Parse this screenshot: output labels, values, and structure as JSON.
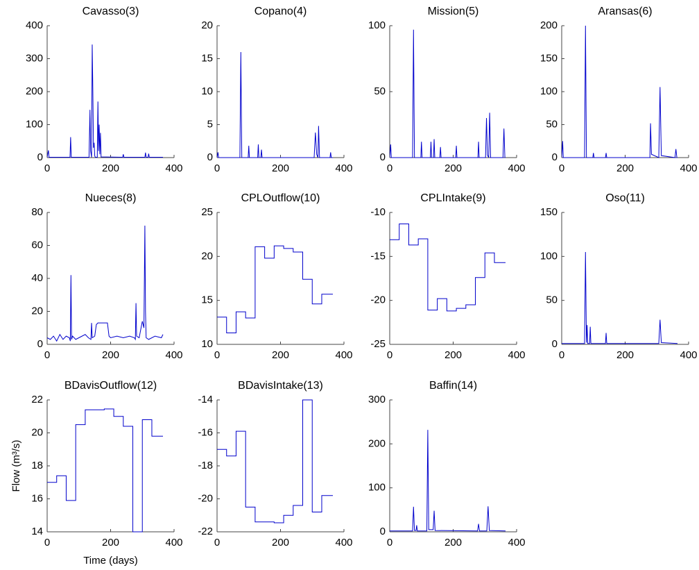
{
  "chart_data": [
    {
      "type": "line",
      "title": "Cavasso(3)",
      "color": "#0000cc",
      "xlim": [
        0,
        400
      ],
      "xticks": [
        0,
        200,
        400
      ],
      "ylim": [
        0,
        400
      ],
      "yticks": [
        0,
        100,
        200,
        300,
        400
      ],
      "x": [
        0,
        4,
        6,
        8,
        72,
        74,
        76,
        132,
        135,
        137,
        140,
        142,
        144,
        146,
        148,
        150,
        152,
        158,
        160,
        162,
        164,
        166,
        168,
        170,
        238,
        240,
        242,
        308,
        310,
        312,
        318,
        320,
        322,
        365
      ],
      "values": [
        1,
        22,
        1,
        1,
        1,
        62,
        1,
        1,
        145,
        20,
        1,
        343,
        205,
        30,
        45,
        5,
        1,
        1,
        170,
        20,
        100,
        10,
        75,
        2,
        1,
        10,
        1,
        1,
        15,
        1,
        1,
        12,
        1,
        1
      ]
    },
    {
      "type": "line",
      "title": "Copano(4)",
      "color": "#0000cc",
      "xlim": [
        0,
        400
      ],
      "xticks": [
        0,
        200,
        400
      ],
      "ylim": [
        0,
        20
      ],
      "yticks": [
        0,
        5,
        10,
        15,
        20
      ],
      "x": [
        0,
        3,
        5,
        8,
        72,
        75,
        78,
        98,
        100,
        102,
        128,
        130,
        132,
        138,
        140,
        142,
        306,
        310,
        314,
        318,
        320,
        323,
        356,
        358,
        360,
        365
      ],
      "values": [
        0,
        0.8,
        0,
        0,
        0,
        16,
        0,
        0,
        1.8,
        0,
        0,
        2,
        0,
        0,
        1.2,
        0,
        0,
        3.8,
        0.5,
        0,
        4.8,
        0,
        0,
        0.8,
        0,
        0
      ]
    },
    {
      "type": "line",
      "title": "Mission(5)",
      "color": "#0000cc",
      "xlim": [
        0,
        400
      ],
      "xticks": [
        0,
        200,
        400
      ],
      "ylim": [
        0,
        100
      ],
      "yticks": [
        0,
        50,
        100
      ],
      "x": [
        0,
        3,
        5,
        8,
        72,
        75,
        78,
        98,
        100,
        102,
        128,
        130,
        132,
        138,
        140,
        142,
        158,
        160,
        162,
        208,
        210,
        212,
        278,
        280,
        282,
        302,
        305,
        308,
        312,
        315,
        318,
        357,
        360,
        363,
        365
      ],
      "values": [
        0,
        10,
        0,
        0,
        0,
        97,
        0,
        0,
        12,
        0,
        0,
        12,
        0,
        0,
        14,
        0,
        0,
        8,
        0,
        0,
        9,
        0,
        0,
        12,
        0,
        0,
        30,
        2,
        0,
        34,
        0,
        0,
        22,
        0,
        0
      ]
    },
    {
      "type": "line",
      "title": "Aransas(6)",
      "color": "#0000cc",
      "xlim": [
        0,
        400
      ],
      "xticks": [
        0,
        200,
        400
      ],
      "ylim": [
        0,
        200
      ],
      "yticks": [
        0,
        50,
        100,
        150,
        200
      ],
      "x": [
        0,
        3,
        5,
        8,
        72,
        75,
        78,
        98,
        100,
        102,
        138,
        140,
        142,
        278,
        280,
        283,
        306,
        310,
        314,
        357,
        360,
        363,
        365
      ],
      "values": [
        0,
        25,
        0,
        0,
        0,
        200,
        0,
        0,
        7,
        0,
        0,
        7,
        0,
        0,
        52,
        5,
        0,
        107,
        3,
        0,
        13,
        0,
        0
      ]
    },
    {
      "type": "line",
      "title": "Nueces(8)",
      "color": "#0000cc",
      "xlim": [
        0,
        400
      ],
      "xticks": [
        0,
        200,
        400
      ],
      "ylim": [
        0,
        80
      ],
      "yticks": [
        0,
        20,
        40,
        60,
        80
      ],
      "x": [
        0,
        10,
        20,
        30,
        40,
        50,
        60,
        70,
        73,
        75,
        77,
        80,
        90,
        100,
        110,
        120,
        130,
        138,
        140,
        142,
        150,
        155,
        160,
        190,
        195,
        200,
        220,
        240,
        260,
        275,
        278,
        280,
        282,
        290,
        300,
        305,
        308,
        310,
        312,
        320,
        340,
        360,
        365
      ],
      "values": [
        4,
        3,
        5,
        2,
        6,
        3,
        5,
        4,
        2,
        42,
        3,
        5,
        3,
        4,
        5,
        6,
        4,
        3,
        13,
        4,
        5,
        12,
        13,
        13,
        5,
        4,
        5,
        4,
        5,
        4,
        3,
        25,
        5,
        4,
        14,
        10,
        72,
        20,
        4,
        3,
        5,
        4,
        6
      ]
    },
    {
      "type": "line",
      "title": "CPLOutflow(10)",
      "color": "#0000cc",
      "xlim": [
        0,
        400
      ],
      "xticks": [
        0,
        200,
        400
      ],
      "ylim": [
        10,
        25
      ],
      "yticks": [
        10,
        15,
        20,
        25
      ],
      "x": [
        0,
        30,
        30,
        60,
        60,
        90,
        90,
        120,
        120,
        150,
        150,
        180,
        180,
        210,
        210,
        240,
        240,
        270,
        270,
        300,
        300,
        330,
        330,
        365
      ],
      "values": [
        13.1,
        13.1,
        11.3,
        11.3,
        13.7,
        13.7,
        13,
        13,
        21.1,
        21.1,
        19.8,
        19.8,
        21.2,
        21.2,
        20.9,
        20.9,
        20.5,
        20.5,
        17.4,
        17.4,
        14.6,
        14.6,
        15.7,
        15.7
      ]
    },
    {
      "type": "line",
      "title": "CPLIntake(9)",
      "color": "#0000cc",
      "xlim": [
        0,
        400
      ],
      "xticks": [
        0,
        200,
        400
      ],
      "ylim": [
        -25,
        -10
      ],
      "yticks": [
        -25,
        -20,
        -15,
        -10
      ],
      "x": [
        0,
        30,
        30,
        60,
        60,
        90,
        90,
        120,
        120,
        150,
        150,
        180,
        180,
        210,
        210,
        240,
        240,
        270,
        270,
        300,
        300,
        330,
        330,
        365
      ],
      "values": [
        -13.1,
        -13.1,
        -11.3,
        -11.3,
        -13.7,
        -13.7,
        -13,
        -13,
        -21.1,
        -21.1,
        -19.8,
        -19.8,
        -21.2,
        -21.2,
        -20.9,
        -20.9,
        -20.5,
        -20.5,
        -17.4,
        -17.4,
        -14.6,
        -14.6,
        -15.7,
        -15.7
      ]
    },
    {
      "type": "line",
      "title": "Oso(11)",
      "color": "#0000cc",
      "xlim": [
        0,
        400
      ],
      "xticks": [
        0,
        200,
        400
      ],
      "ylim": [
        0,
        150
      ],
      "yticks": [
        0,
        50,
        100,
        150
      ],
      "x": [
        0,
        72,
        75,
        78,
        80,
        82,
        88,
        90,
        92,
        138,
        140,
        142,
        306,
        310,
        314,
        365
      ],
      "values": [
        1,
        1,
        105,
        2,
        22,
        1,
        1,
        20,
        1,
        1,
        13,
        1,
        1,
        28,
        2,
        1
      ]
    },
    {
      "type": "line",
      "title": "BDavisOutflow(12)",
      "color": "#0000cc",
      "xlim": [
        0,
        400
      ],
      "xticks": [
        0,
        200,
        400
      ],
      "ylim": [
        14,
        22
      ],
      "yticks": [
        14,
        16,
        18,
        20,
        22
      ],
      "xlabel": "Time (days)",
      "ylabel": "Flow (m³/s)",
      "x": [
        0,
        30,
        30,
        60,
        60,
        90,
        90,
        120,
        120,
        150,
        150,
        180,
        180,
        210,
        210,
        240,
        240,
        270,
        270,
        300,
        300,
        330,
        330,
        365
      ],
      "values": [
        17,
        17,
        17.4,
        17.4,
        15.9,
        15.9,
        20.5,
        20.5,
        21.4,
        21.4,
        21.4,
        21.4,
        21.45,
        21.45,
        21,
        21,
        20.4,
        20.4,
        14,
        14,
        20.8,
        20.8,
        19.8,
        19.8
      ]
    },
    {
      "type": "line",
      "title": "BDavisIntake(13)",
      "color": "#0000cc",
      "xlim": [
        0,
        400
      ],
      "xticks": [
        0,
        200,
        400
      ],
      "ylim": [
        -22,
        -14
      ],
      "yticks": [
        -22,
        -20,
        -18,
        -16,
        -14
      ],
      "x": [
        0,
        30,
        30,
        60,
        60,
        90,
        90,
        120,
        120,
        150,
        150,
        180,
        180,
        210,
        210,
        240,
        240,
        270,
        270,
        300,
        300,
        330,
        330,
        365
      ],
      "values": [
        -17,
        -17,
        -17.4,
        -17.4,
        -15.9,
        -15.9,
        -20.5,
        -20.5,
        -21.4,
        -21.4,
        -21.4,
        -21.4,
        -21.45,
        -21.45,
        -21,
        -21,
        -20.4,
        -20.4,
        -14,
        -14,
        -20.8,
        -20.8,
        -19.8,
        -19.8
      ]
    },
    {
      "type": "line",
      "title": "Baffin(14)",
      "color": "#0000cc",
      "xlim": [
        0,
        400
      ],
      "xticks": [
        0,
        200,
        400
      ],
      "ylim": [
        0,
        300
      ],
      "yticks": [
        0,
        100,
        200,
        300
      ],
      "x": [
        0,
        72,
        75,
        78,
        83,
        85,
        87,
        117,
        120,
        123,
        137,
        140,
        143,
        277,
        280,
        283,
        306,
        310,
        314,
        365
      ],
      "values": [
        2,
        2,
        57,
        3,
        3,
        15,
        2,
        2,
        232,
        5,
        5,
        48,
        3,
        2,
        18,
        2,
        2,
        58,
        3,
        2
      ]
    }
  ]
}
